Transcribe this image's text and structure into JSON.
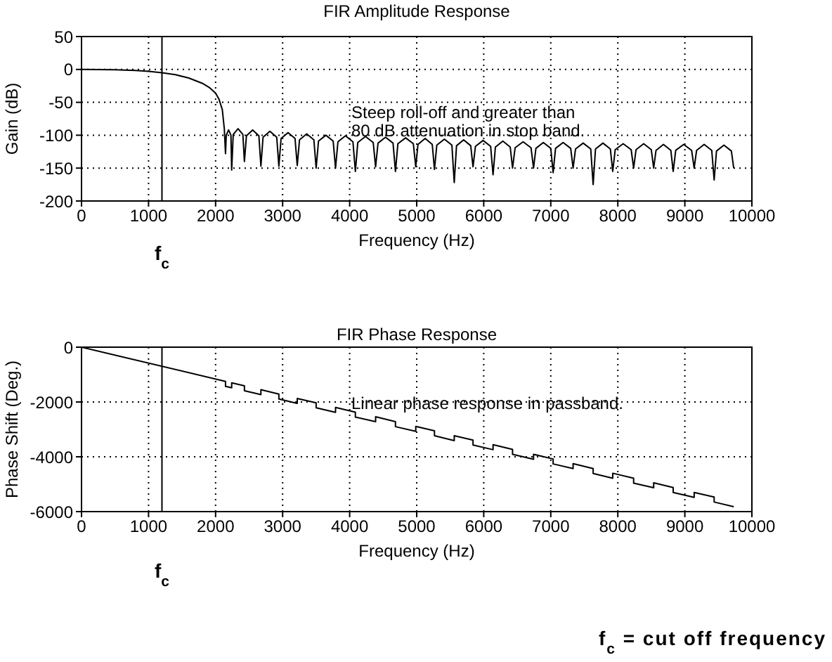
{
  "chart_data": [
    {
      "type": "line",
      "title": "FIR Amplitude Response",
      "xlabel": "Frequency (Hz)",
      "ylabel": "Gain (dB)",
      "color": "#000000",
      "x": [
        0,
        500,
        800,
        1000,
        1200,
        1400,
        1600,
        1800,
        1900,
        2000,
        2050,
        2100,
        2130,
        2148,
        2159,
        2194,
        2229,
        2240,
        2263,
        2335,
        2407,
        2430,
        2460,
        2553,
        2646,
        2676,
        2708,
        2810,
        2912,
        2944,
        2977,
        3081,
        3185,
        3218,
        3252,
        3359,
        3466,
        3500,
        3535,
        3645,
        3754,
        3789,
        3825,
        3937,
        4049,
        4085,
        4121,
        4236,
        4351,
        4387,
        4423,
        4535,
        4647,
        4683,
        4719,
        4835,
        4950,
        4986,
        5019,
        5126,
        5232,
        5265,
        5300,
        5413,
        5525,
        5560,
        5594,
        5700,
        5806,
        5840,
        5876,
        5990,
        6103,
        6139,
        6174,
        6285,
        6395,
        6430,
        6468,
        6587,
        6705,
        6743,
        6778,
        6889,
        7000,
        7035,
        7071,
        7184,
        7297,
        7333,
        7369,
        7483,
        7596,
        7632,
        7667,
        7778,
        7889,
        7924,
        7961,
        8080,
        8199,
        8236,
        8272,
        8386,
        8499,
        8535,
        8570,
        8681,
        8791,
        8826,
        8864,
        8983,
        9101,
        9139,
        9175,
        9288,
        9401,
        9437,
        9472,
        9583,
        9694,
        9729
      ],
      "values": [
        0,
        -0.5,
        -1.5,
        -3,
        -5,
        -8,
        -13,
        -21,
        -27,
        -36,
        -45,
        -61,
        -90,
        -128,
        -100,
        -92,
        -100,
        -153,
        -99,
        -90,
        -99,
        -140,
        -101,
        -92,
        -101,
        -147,
        -103,
        -94,
        -103,
        -147,
        -105,
        -96,
        -105,
        -146,
        -107,
        -98,
        -107,
        -150,
        -109,
        -100,
        -109,
        -150,
        -110,
        -101,
        -110,
        -155,
        -111,
        -102,
        -111,
        -148,
        -112,
        -103,
        -112,
        -155,
        -113,
        -104,
        -113,
        -148,
        -114,
        -105,
        -114,
        -152,
        -115,
        -106,
        -115,
        -172,
        -116,
        -107,
        -116,
        -148,
        -117,
        -108,
        -117,
        -160,
        -118,
        -109,
        -118,
        -150,
        -119,
        -110,
        -119,
        -150,
        -120,
        -111,
        -120,
        -157,
        -120,
        -111,
        -120,
        -150,
        -121,
        -112,
        -121,
        -175,
        -121,
        -112,
        -121,
        -155,
        -122,
        -113,
        -122,
        -150,
        -122,
        -113,
        -122,
        -150,
        -123,
        -114,
        -123,
        -155,
        -123,
        -114,
        -123,
        -150,
        -123,
        -114,
        -123,
        -168,
        -124,
        -115,
        -124,
        -150
      ],
      "xlim": [
        0,
        10000
      ],
      "xticks": [
        0,
        1000,
        2000,
        3000,
        4000,
        5000,
        6000,
        7000,
        8000,
        9000,
        10000
      ],
      "ylim": [
        -200,
        50
      ],
      "yticks": [
        -200,
        -150,
        -100,
        -50,
        0,
        50
      ],
      "grid": true,
      "ref_lines": [
        {
          "axis": "x",
          "value": 1200,
          "label": "f$_{c}$"
        }
      ],
      "annotations": [
        "Steep roll-off and greater than\n80 dB attenuation in stop band."
      ]
    },
    {
      "type": "line",
      "title": "FIR Phase Response",
      "xlabel": "Frequency (Hz)",
      "ylabel": "Phase Shift (Deg.)",
      "color": "#000000",
      "x": [
        0,
        2148,
        2148,
        2240,
        2240,
        2430,
        2430,
        2676,
        2676,
        2944,
        2944,
        3218,
        3218,
        3500,
        3500,
        3789,
        3789,
        4085,
        4085,
        4387,
        4387,
        4683,
        4683,
        4986,
        4986,
        5265,
        5265,
        5560,
        5560,
        5840,
        5840,
        6139,
        6139,
        6430,
        6430,
        6743,
        6743,
        7035,
        7035,
        7333,
        7333,
        7632,
        7632,
        7924,
        7924,
        8236,
        8236,
        8535,
        8535,
        8826,
        8826,
        9139,
        9139,
        9437,
        9437,
        9729
      ],
      "values": [
        0,
        -1250,
        -1430,
        -1480,
        -1300,
        -1410,
        -1590,
        -1730,
        -1550,
        -1710,
        -1890,
        -2050,
        -1870,
        -2030,
        -2210,
        -2380,
        -2200,
        -2370,
        -2550,
        -2720,
        -2540,
        -2720,
        -2900,
        -3070,
        -2890,
        -3050,
        -3230,
        -3410,
        -3230,
        -3390,
        -3570,
        -3740,
        -3560,
        -3730,
        -3910,
        -4090,
        -3910,
        -4080,
        -4260,
        -4430,
        -4250,
        -4430,
        -4610,
        -4780,
        -4600,
        -4780,
        -4960,
        -5130,
        -4950,
        -5120,
        -5300,
        -5480,
        -5300,
        -5470,
        -5650,
        -5820
      ],
      "xlim": [
        0,
        10000
      ],
      "xticks": [
        0,
        1000,
        2000,
        3000,
        4000,
        5000,
        6000,
        7000,
        8000,
        9000,
        10000
      ],
      "ylim": [
        -6000,
        0
      ],
      "yticks": [
        -6000,
        -4000,
        -2000,
        0
      ],
      "grid": true,
      "ref_lines": [
        {
          "axis": "x",
          "value": 1200,
          "label": "f$_{c}$"
        }
      ],
      "annotations": [
        "Linear phase response in passband.",
        "f$_{c}$ = cut off frequency"
      ]
    }
  ]
}
